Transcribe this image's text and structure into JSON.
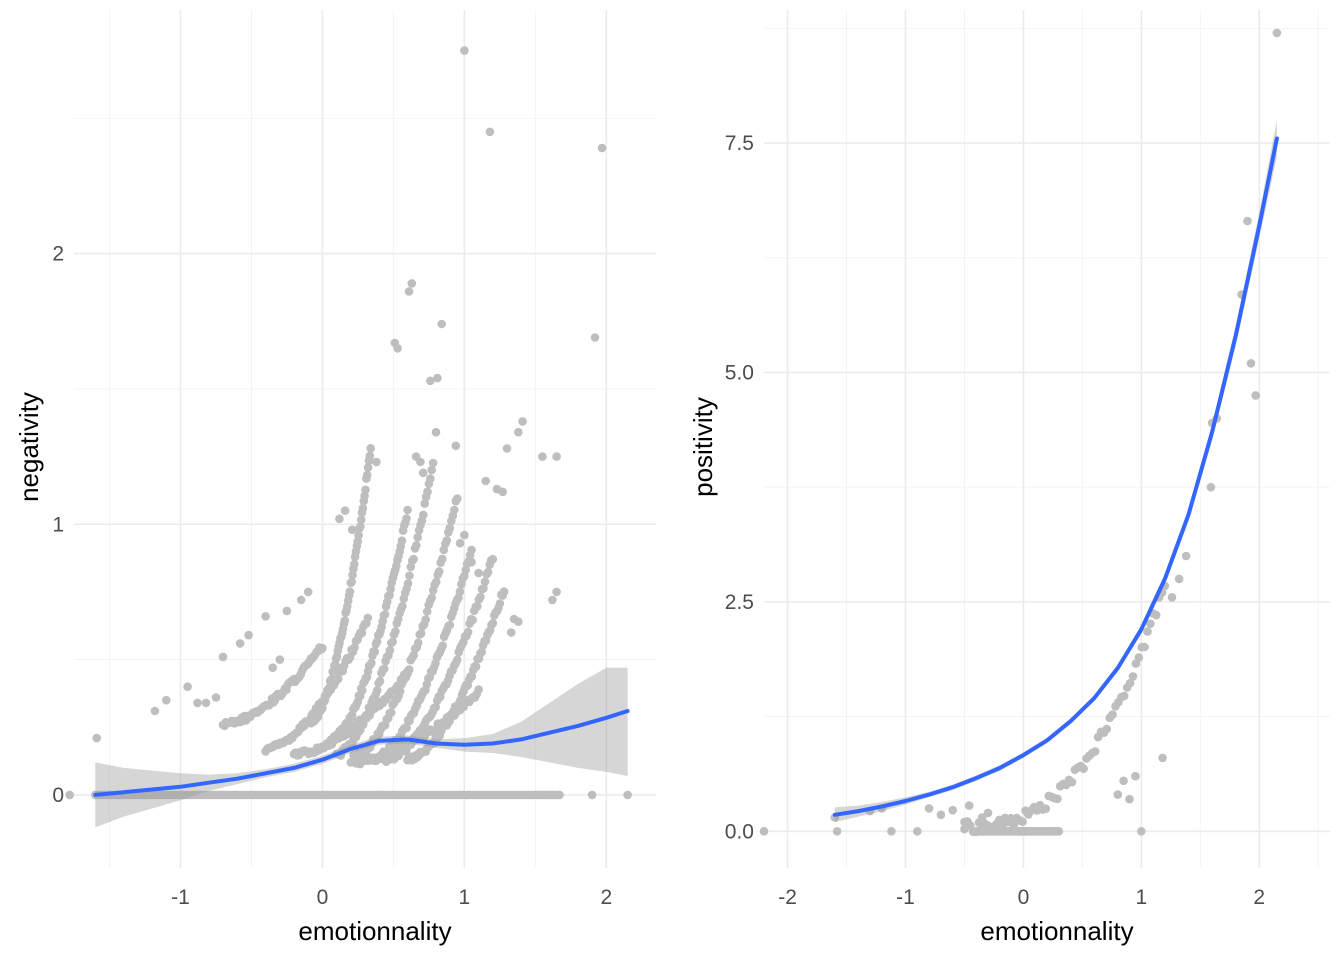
{
  "chart_data": [
    {
      "type": "scatter",
      "xlabel": "emotionnality",
      "ylabel": "negativity",
      "xlim": [
        -1.75,
        2.35
      ],
      "ylim": [
        -0.27,
        2.9
      ],
      "xticks": [
        -1,
        0,
        1,
        2
      ],
      "yticks": [
        0,
        1,
        2
      ],
      "xtick_labels": [
        "-1",
        "0",
        "1",
        "2"
      ],
      "ytick_labels": [
        "0",
        "1",
        "2"
      ],
      "grid": true,
      "legend": "none",
      "colors": {
        "points": "#bebebe",
        "trend": "#3366ff",
        "ribbon": "#999999"
      },
      "points": [
        [
          1.0,
          2.75
        ],
        [
          1.18,
          2.45
        ],
        [
          1.97,
          2.39
        ],
        [
          0.63,
          1.89
        ],
        [
          0.61,
          1.86
        ],
        [
          0.84,
          1.74
        ],
        [
          1.92,
          1.69
        ],
        [
          0.51,
          1.67
        ],
        [
          0.53,
          1.65
        ],
        [
          0.81,
          1.54
        ],
        [
          0.76,
          1.53
        ],
        [
          0.8,
          1.34
        ],
        [
          0.94,
          1.29
        ],
        [
          1.3,
          1.28
        ],
        [
          1.38,
          1.34
        ],
        [
          1.41,
          1.38
        ],
        [
          1.65,
          1.25
        ],
        [
          0.38,
          1.23
        ],
        [
          0.69,
          1.23
        ],
        [
          0.66,
          1.25
        ],
        [
          0.71,
          1.19
        ],
        [
          1.15,
          1.16
        ],
        [
          1.23,
          1.13
        ],
        [
          1.27,
          1.12
        ],
        [
          1.55,
          1.25
        ],
        [
          0.12,
          1.02
        ],
        [
          0.16,
          1.05
        ],
        [
          0.21,
          0.98
        ],
        [
          1.1,
          0.82
        ],
        [
          1.05,
          0.86
        ],
        [
          1.0,
          0.96
        ],
        [
          0.97,
          0.93
        ],
        [
          1.62,
          0.72
        ],
        [
          1.65,
          0.75
        ],
        [
          1.38,
          0.64
        ],
        [
          1.33,
          0.6
        ],
        [
          1.35,
          0.65
        ],
        [
          -0.25,
          0.68
        ],
        [
          -0.15,
          0.72
        ],
        [
          -0.1,
          0.75
        ],
        [
          -0.4,
          0.66
        ],
        [
          -0.58,
          0.56
        ],
        [
          -0.52,
          0.59
        ],
        [
          -0.7,
          0.51
        ],
        [
          -0.75,
          0.36
        ],
        [
          -0.82,
          0.34
        ],
        [
          -0.95,
          0.4
        ],
        [
          -1.1,
          0.35
        ],
        [
          -1.18,
          0.31
        ],
        [
          -1.59,
          0.21
        ],
        [
          -0.35,
          0.47
        ],
        [
          -0.3,
          0.5
        ],
        [
          -0.88,
          0.34
        ],
        [
          1.67,
          0.0
        ],
        [
          1.52,
          0.0
        ],
        [
          1.58,
          0.0
        ],
        [
          1.62,
          0.0
        ],
        [
          1.9,
          0.0
        ],
        [
          2.15,
          0.0
        ],
        [
          -1.78,
          0.0
        ]
      ],
      "point_bands": [
        {
          "x_start": -0.08,
          "x_end": 0.34,
          "y_start": 0.27,
          "y_end": 1.28,
          "name": ""
        },
        {
          "x_start": 0.05,
          "x_end": 0.6,
          "y_start": 0.2,
          "y_end": 1.05,
          "name": ""
        },
        {
          "x_start": 0.1,
          "x_end": 0.78,
          "y_start": 0.15,
          "y_end": 1.22,
          "name": ""
        },
        {
          "x_start": 0.22,
          "x_end": 0.95,
          "y_start": 0.14,
          "y_end": 1.1,
          "name": ""
        },
        {
          "x_start": 0.35,
          "x_end": 1.05,
          "y_start": 0.13,
          "y_end": 0.9,
          "name": ""
        },
        {
          "x_start": 0.45,
          "x_end": 1.2,
          "y_start": 0.13,
          "y_end": 0.88,
          "name": ""
        },
        {
          "x_start": 0.6,
          "x_end": 1.28,
          "y_start": 0.13,
          "y_end": 0.76,
          "name": ""
        },
        {
          "x_start": -0.4,
          "x_end": 0.32,
          "y_start": 0.17,
          "y_end": 0.65,
          "name": ""
        },
        {
          "x_start": -0.7,
          "x_end": 0.0,
          "y_start": 0.26,
          "y_end": 0.55,
          "name": ""
        },
        {
          "x_start": -0.2,
          "x_end": 0.6,
          "y_start": 0.15,
          "y_end": 0.45,
          "name": ""
        },
        {
          "x_start": 0.2,
          "x_end": 1.1,
          "y_start": 0.12,
          "y_end": 0.38,
          "name": ""
        },
        {
          "x_start": -1.6,
          "x_end": 1.65,
          "y_start": 0.0,
          "y_end": 0.0,
          "name": ""
        }
      ],
      "trend": {
        "x": [
          -1.6,
          -1.4,
          -1.2,
          -1.0,
          -0.8,
          -0.6,
          -0.4,
          -0.2,
          0.0,
          0.2,
          0.4,
          0.6,
          0.8,
          1.0,
          1.2,
          1.4,
          1.6,
          1.8,
          2.0,
          2.15
        ],
        "y": [
          0.0,
          0.01,
          0.02,
          0.03,
          0.045,
          0.06,
          0.08,
          0.1,
          0.13,
          0.17,
          0.2,
          0.205,
          0.19,
          0.185,
          0.19,
          0.205,
          0.23,
          0.255,
          0.285,
          0.31
        ],
        "lower": [
          -0.12,
          -0.08,
          -0.05,
          -0.02,
          0.015,
          0.04,
          0.065,
          0.085,
          0.115,
          0.155,
          0.185,
          0.19,
          0.175,
          0.16,
          0.155,
          0.14,
          0.12,
          0.1,
          0.085,
          0.07
        ],
        "upper": [
          0.12,
          0.1,
          0.09,
          0.08,
          0.075,
          0.08,
          0.095,
          0.115,
          0.145,
          0.185,
          0.215,
          0.22,
          0.205,
          0.21,
          0.225,
          0.27,
          0.34,
          0.41,
          0.47,
          0.47
        ]
      }
    },
    {
      "type": "scatter",
      "xlabel": "emotionnality",
      "ylabel": "positivity",
      "xlim": [
        -2.2,
        2.6
      ],
      "ylim": [
        -0.4,
        8.95
      ],
      "xticks": [
        -2,
        -1,
        0,
        1,
        2
      ],
      "yticks": [
        0.0,
        2.5,
        5.0,
        7.5
      ],
      "xtick_labels": [
        "-2",
        "-1",
        "0",
        "1",
        "2"
      ],
      "ytick_labels": [
        "0.0",
        "2.5",
        "5.0",
        "7.5"
      ],
      "grid": true,
      "legend": "none",
      "colors": {
        "points": "#bebebe",
        "trend": "#3366ff",
        "ribbon": "#999999"
      },
      "points": [
        [
          2.15,
          8.7
        ],
        [
          1.9,
          6.65
        ],
        [
          1.85,
          5.85
        ],
        [
          1.93,
          5.1
        ],
        [
          1.97,
          4.75
        ],
        [
          1.64,
          4.5
        ],
        [
          1.6,
          4.45
        ],
        [
          1.59,
          3.75
        ],
        [
          1.38,
          3.0
        ],
        [
          1.32,
          2.75
        ],
        [
          1.26,
          2.55
        ],
        [
          1.18,
          0.8
        ],
        [
          1.0,
          0.0
        ],
        [
          0.9,
          0.35
        ],
        [
          0.85,
          0.55
        ],
        [
          0.95,
          0.6
        ],
        [
          0.8,
          0.4
        ],
        [
          -2.2,
          0.0
        ],
        [
          -1.6,
          0.15
        ],
        [
          -1.58,
          0.0
        ],
        [
          -1.2,
          0.25
        ],
        [
          -1.3,
          0.22
        ],
        [
          -0.9,
          0.0
        ],
        [
          -1.12,
          0.0
        ],
        [
          -0.8,
          0.25
        ],
        [
          -0.7,
          0.18
        ],
        [
          -0.6,
          0.23
        ],
        [
          -0.5,
          0.1
        ],
        [
          -0.46,
          0.28
        ],
        [
          -0.35,
          0.15
        ],
        [
          -0.3,
          0.2
        ],
        [
          -0.25,
          0.0
        ],
        [
          -0.2,
          0.12
        ]
      ],
      "point_bands": [
        {
          "x_start": -0.4,
          "x_end": 0.3,
          "y_start": 0.0,
          "y_end": 0.0,
          "name": ""
        },
        {
          "x_start": -0.5,
          "x_end": 1.2,
          "y_start": 0.05,
          "y_end": 2.7,
          "name": ""
        }
      ],
      "trend": {
        "x": [
          -1.6,
          -1.4,
          -1.2,
          -1.0,
          -0.8,
          -0.6,
          -0.4,
          -0.2,
          0.0,
          0.2,
          0.4,
          0.6,
          0.8,
          1.0,
          1.2,
          1.4,
          1.6,
          1.8,
          2.0,
          2.15
        ],
        "y": [
          0.18,
          0.22,
          0.27,
          0.33,
          0.4,
          0.48,
          0.58,
          0.69,
          0.83,
          0.99,
          1.2,
          1.45,
          1.78,
          2.2,
          2.75,
          3.45,
          4.35,
          5.4,
          6.6,
          7.55
        ],
        "lower": [
          0.1,
          0.16,
          0.22,
          0.29,
          0.37,
          0.45,
          0.55,
          0.66,
          0.8,
          0.96,
          1.17,
          1.42,
          1.74,
          2.15,
          2.69,
          3.38,
          4.26,
          5.29,
          6.46,
          7.35
        ],
        "upper": [
          0.26,
          0.28,
          0.32,
          0.37,
          0.43,
          0.51,
          0.61,
          0.72,
          0.86,
          1.02,
          1.23,
          1.48,
          1.82,
          2.25,
          2.81,
          3.52,
          4.44,
          5.51,
          6.74,
          7.75
        ]
      }
    }
  ]
}
